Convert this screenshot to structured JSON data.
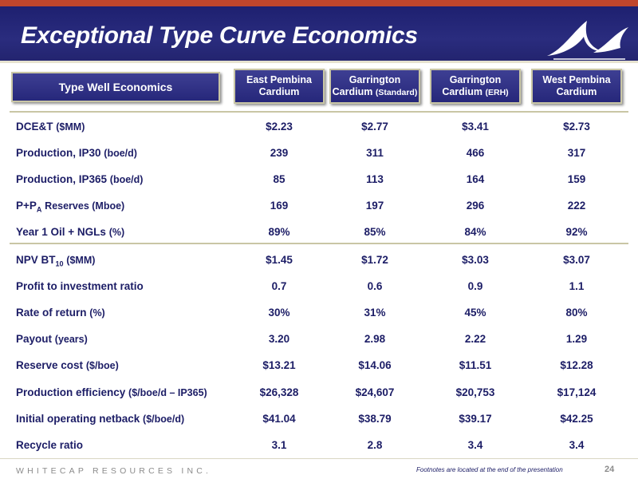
{
  "slide": {
    "title": "Exceptional Type Curve Economics",
    "company": "WHITECAP RESOURCES INC.",
    "footnote": "Footnotes are located at the end of the presentation",
    "page_number": "24"
  },
  "table": {
    "header_label": "Type Well Economics",
    "columns": [
      {
        "line1": "East Pembina",
        "line2": "Cardium",
        "note": ""
      },
      {
        "line1": "Garrington",
        "line2": "Cardium",
        "note": "(Standard)"
      },
      {
        "line1": "Garrington",
        "line2": "Cardium",
        "note": "(ERH)"
      },
      {
        "line1": "West Pembina",
        "line2": "Cardium",
        "note": ""
      }
    ],
    "rows": [
      {
        "label": "DCE&T",
        "sub": "",
        "unit": "($MM)",
        "values": [
          "$2.23",
          "$2.77",
          "$3.41",
          "$2.73"
        ]
      },
      {
        "label": "Production, IP30",
        "sub": "",
        "unit": "(boe/d)",
        "values": [
          "239",
          "311",
          "466",
          "317"
        ]
      },
      {
        "label": "Production, IP365",
        "sub": "",
        "unit": "(boe/d)",
        "values": [
          "85",
          "113",
          "164",
          "159"
        ]
      },
      {
        "label": "P+P",
        "sub": "A",
        "unit": "Reserves (Mboe)",
        "values": [
          "169",
          "197",
          "296",
          "222"
        ]
      },
      {
        "label": "Year 1 Oil + NGLs",
        "sub": "",
        "unit": "(%)",
        "values": [
          "89%",
          "85%",
          "84%",
          "92%"
        ]
      },
      {
        "label": "NPV BT",
        "sub": "10",
        "unit": "($MM)",
        "values": [
          "$1.45",
          "$1.72",
          "$3.03",
          "$3.07"
        ]
      },
      {
        "label": "Profit to investment ratio",
        "sub": "",
        "unit": "",
        "values": [
          "0.7",
          "0.6",
          "0.9",
          "1.1"
        ]
      },
      {
        "label": "Rate of return",
        "sub": "",
        "unit": "(%)",
        "values": [
          "30%",
          "31%",
          "45%",
          "80%"
        ]
      },
      {
        "label": "Payout",
        "sub": "",
        "unit": "(years)",
        "values": [
          "3.20",
          "2.98",
          "2.22",
          "1.29"
        ]
      },
      {
        "label": "Reserve cost",
        "sub": "",
        "unit": "($/boe)",
        "values": [
          "$13.21",
          "$14.06",
          "$11.51",
          "$12.28"
        ]
      },
      {
        "label": "Production efficiency",
        "sub": "",
        "unit": "($/boe/d – IP365)",
        "values": [
          "$26,328",
          "$24,607",
          "$20,753",
          "$17,124"
        ]
      },
      {
        "label": "Initial operating netback",
        "sub": "",
        "unit": "($/boe/d)",
        "values": [
          "$41.04",
          "$38.79",
          "$39.17",
          "$42.25"
        ]
      },
      {
        "label": "Recycle ratio",
        "sub": "",
        "unit": "",
        "values": [
          "3.1",
          "2.8",
          "3.4",
          "3.4"
        ]
      }
    ]
  }
}
